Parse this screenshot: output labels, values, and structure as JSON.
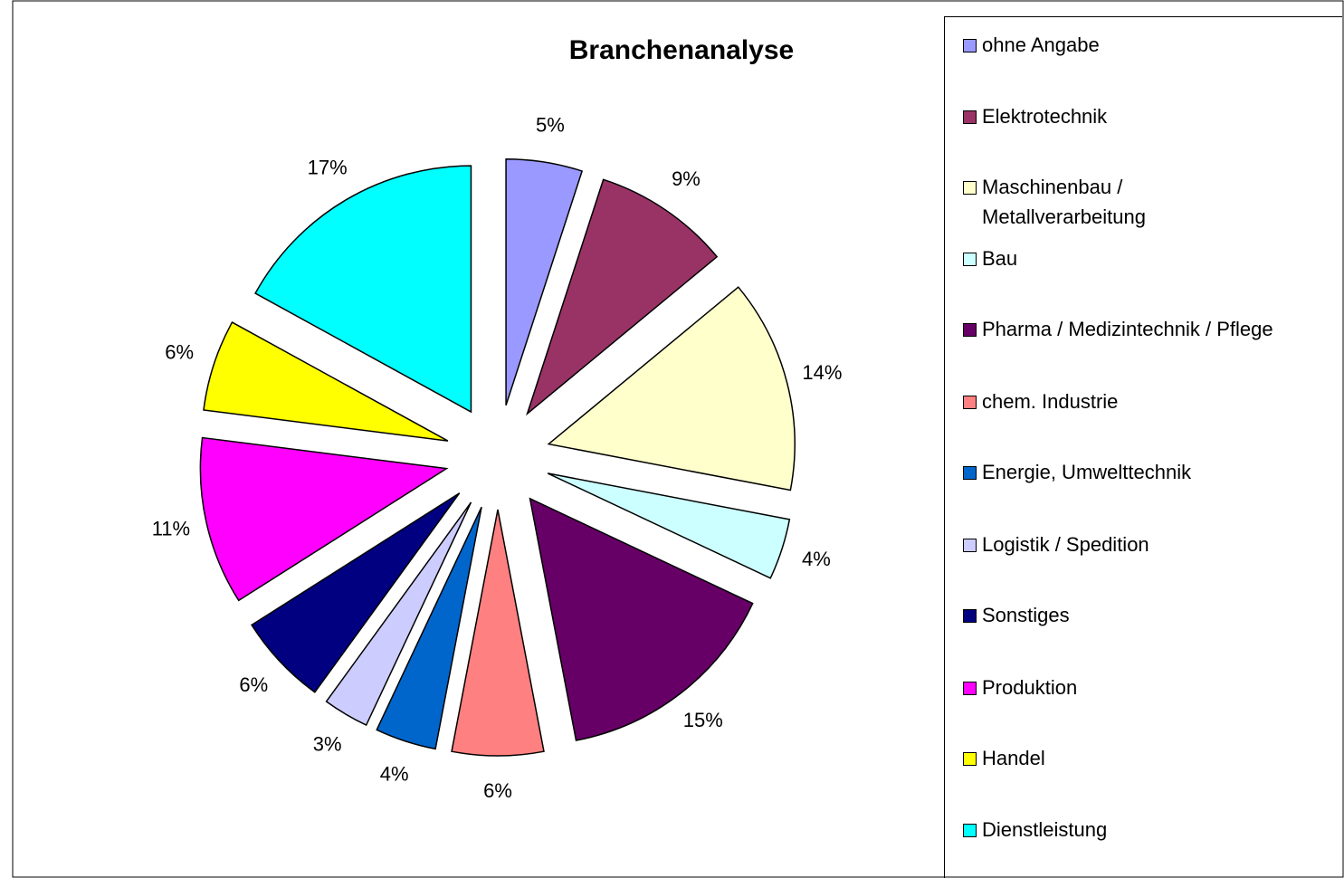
{
  "chart_data": {
    "type": "pie",
    "title": "Branchenanalyse",
    "categories": [
      "ohne Angabe",
      "Elektrotechnik",
      "Maschinenbau / Metallverarbeitung",
      "Bau",
      "Pharma / Medizintechnik / Pflege",
      "chem. Industrie",
      "Energie, Umwelttechnik",
      "Logistik / Spedition",
      "Sonstiges",
      "Produktion",
      "Handel",
      "Dienstleistung"
    ],
    "values": [
      5,
      9,
      14,
      4,
      15,
      6,
      4,
      3,
      6,
      11,
      6,
      17
    ],
    "value_labels": [
      "5%",
      "9%",
      "14%",
      "4%",
      "15%",
      "6%",
      "4%",
      "3%",
      "6%",
      "11%",
      "6%",
      "17%"
    ],
    "colors": [
      "#9999ff",
      "#993366",
      "#ffffcc",
      "#ccffff",
      "#660066",
      "#ff8080",
      "#0066cc",
      "#ccccff",
      "#000080",
      "#ff00ff",
      "#ffff00",
      "#00ffff"
    ],
    "legend": "right"
  }
}
